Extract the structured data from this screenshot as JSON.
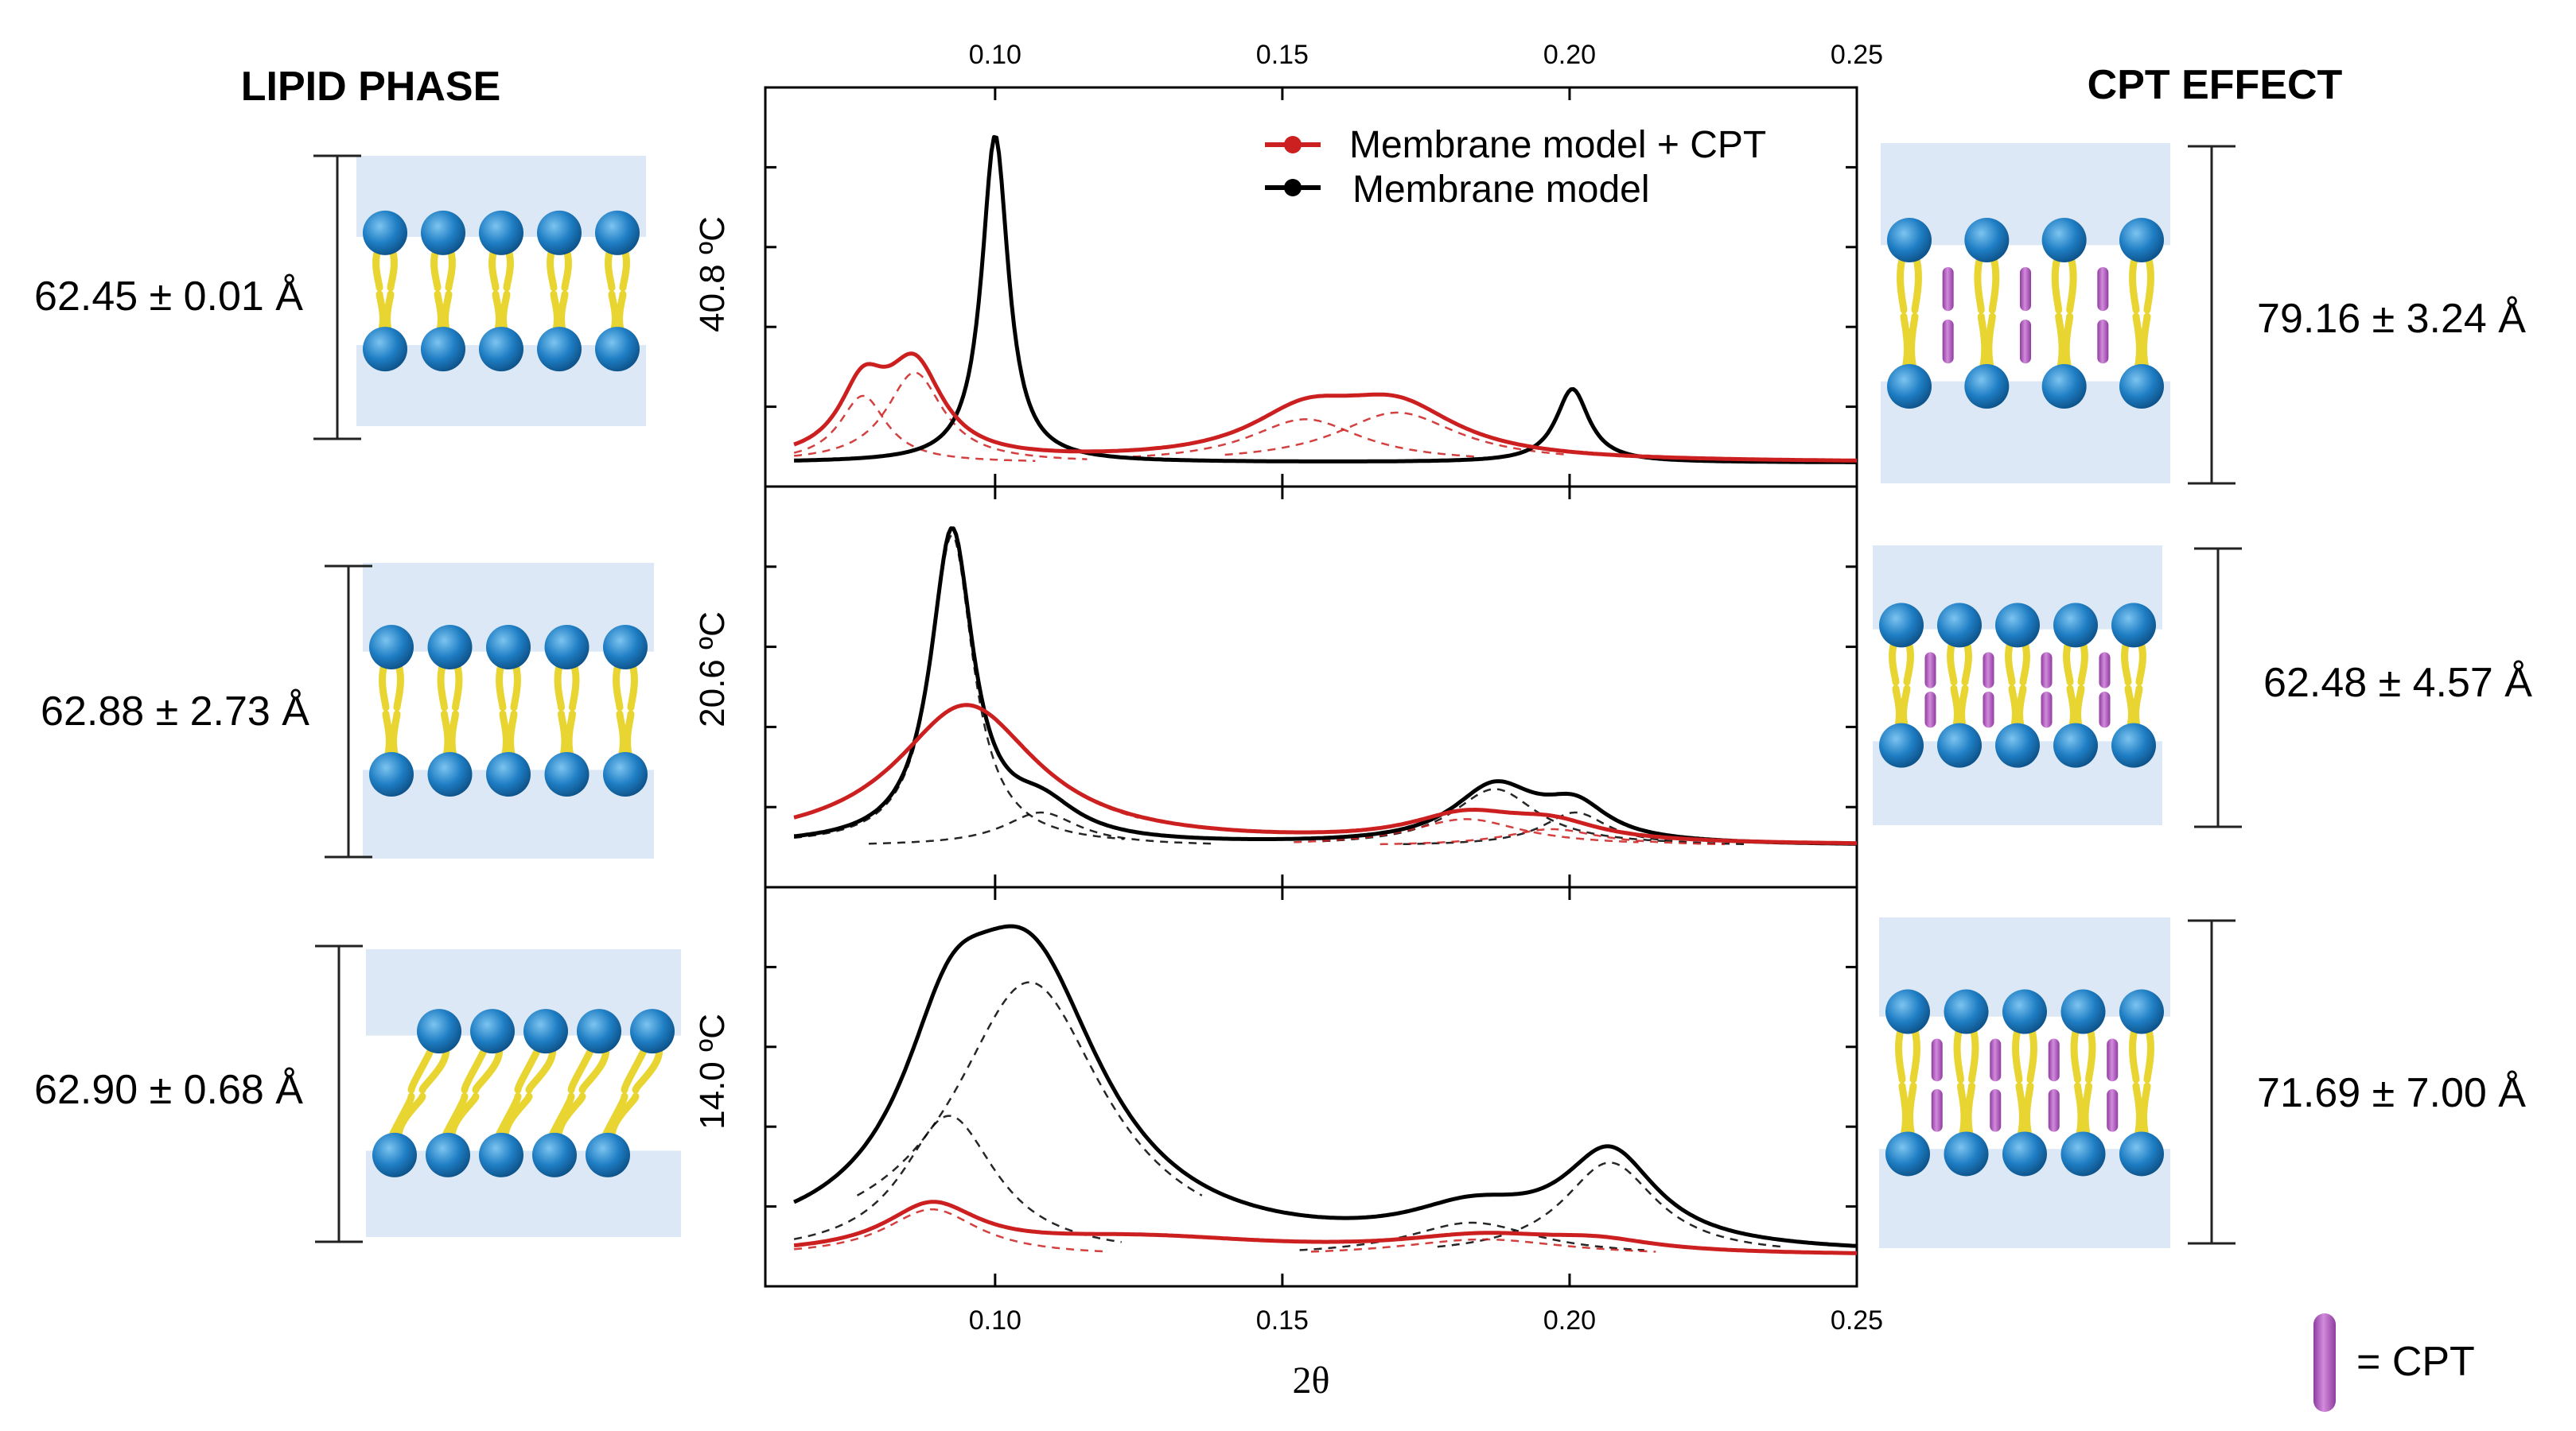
{
  "headers": {
    "left": "LIPID PHASE",
    "right": "CPT EFFECT"
  },
  "legend": {
    "items": [
      {
        "label": "Membrane model + CPT",
        "color": "#cc1f1f"
      },
      {
        "label": "Membrane model",
        "color": "#000000"
      }
    ],
    "cpt_key": "= CPT"
  },
  "colors": {
    "water": "#dce8f5",
    "head": "#1f7ec4",
    "tail": "#e8d531",
    "cpt": "#b65dc4",
    "black": "#000000",
    "red": "#cc1f1f"
  },
  "left_measurements": [
    "62.45 ± 0.01 Å",
    "62.88 ± 2.73 Å",
    "62.90 ± 0.68 Å"
  ],
  "right_measurements": [
    "79.16 ± 3.24 Å",
    "62.48 ± 4.57 Å",
    "71.69 ± 7.00 Å"
  ],
  "chart_data": {
    "type": "line",
    "xlabel": "2θ",
    "xlim": [
      0.06,
      0.25
    ],
    "xticks": [
      0.1,
      0.15,
      0.2,
      0.25
    ],
    "xtick_labels": [
      "0.10",
      "0.15",
      "0.20",
      "0.25"
    ],
    "panels": [
      {
        "ylabel": "40.8 ºC",
        "series": [
          {
            "name": "Membrane model + CPT",
            "color": "#cc1f1f",
            "peaks": [
              [
                0.077,
                0.2,
                0.005
              ],
              [
                0.086,
                0.27,
                0.006
              ],
              [
                0.154,
                0.13,
                0.012
              ],
              [
                0.17,
                0.15,
                0.013
              ]
            ]
          },
          {
            "name": "Membrane model",
            "color": "#000000",
            "peaks": [
              [
                0.1,
                0.98,
                0.0028
              ],
              [
                0.2005,
                0.22,
                0.0035
              ]
            ],
            "baseline": 0.0
          }
        ],
        "components": [
          [
            0.077,
            0.2,
            0.005
          ],
          [
            0.086,
            0.27,
            0.006
          ],
          [
            0.154,
            0.13,
            0.012
          ],
          [
            0.17,
            0.15,
            0.013
          ]
        ]
      },
      {
        "ylabel": "20.6 ºC",
        "series": [
          {
            "name": "Membrane model + CPT",
            "color": "#cc1f1f",
            "peaks": [
              [
                0.095,
                0.42,
                0.015
              ],
              [
                0.182,
                0.08,
                0.012
              ],
              [
                0.197,
                0.05,
                0.01
              ]
            ]
          },
          {
            "name": "Membrane model",
            "color": "#000000",
            "peaks": [
              [
                0.0925,
                0.93,
                0.0045
              ],
              [
                0.108,
                0.1,
                0.008
              ],
              [
                0.187,
                0.17,
                0.009
              ],
              [
                0.201,
                0.1,
                0.007
              ]
            ]
          }
        ],
        "components": [
          [
            0.0925,
            0.93,
            0.0045
          ],
          [
            0.108,
            0.1,
            0.008
          ],
          [
            0.095,
            0.42,
            0.015
          ],
          [
            0.187,
            0.17,
            0.009
          ],
          [
            0.201,
            0.1,
            0.007
          ],
          [
            0.182,
            0.08,
            0.012
          ],
          [
            0.197,
            0.05,
            0.01
          ]
        ]
      },
      {
        "ylabel": "14.0 ºC",
        "series": [
          {
            "name": "Membrane model + CPT",
            "color": "#cc1f1f",
            "peaks": [
              [
                0.089,
                0.14,
                0.01
              ],
              [
                0.125,
                0.05,
                0.03
              ],
              [
                0.185,
                0.05,
                0.018
              ],
              [
                0.205,
                0.03,
                0.012
              ]
            ]
          },
          {
            "name": "Membrane model",
            "color": "#000000",
            "peaks": [
              [
                0.092,
                0.42,
                0.01
              ],
              [
                0.106,
                0.82,
                0.016
              ],
              [
                0.183,
                0.1,
                0.014
              ],
              [
                0.207,
                0.28,
                0.01
              ]
            ]
          }
        ],
        "components": [
          [
            0.092,
            0.42,
            0.01
          ],
          [
            0.106,
            0.82,
            0.016
          ],
          [
            0.207,
            0.28,
            0.01
          ],
          [
            0.183,
            0.1,
            0.014
          ],
          [
            0.089,
            0.14,
            0.01
          ],
          [
            0.185,
            0.05,
            0.018
          ]
        ]
      }
    ]
  }
}
